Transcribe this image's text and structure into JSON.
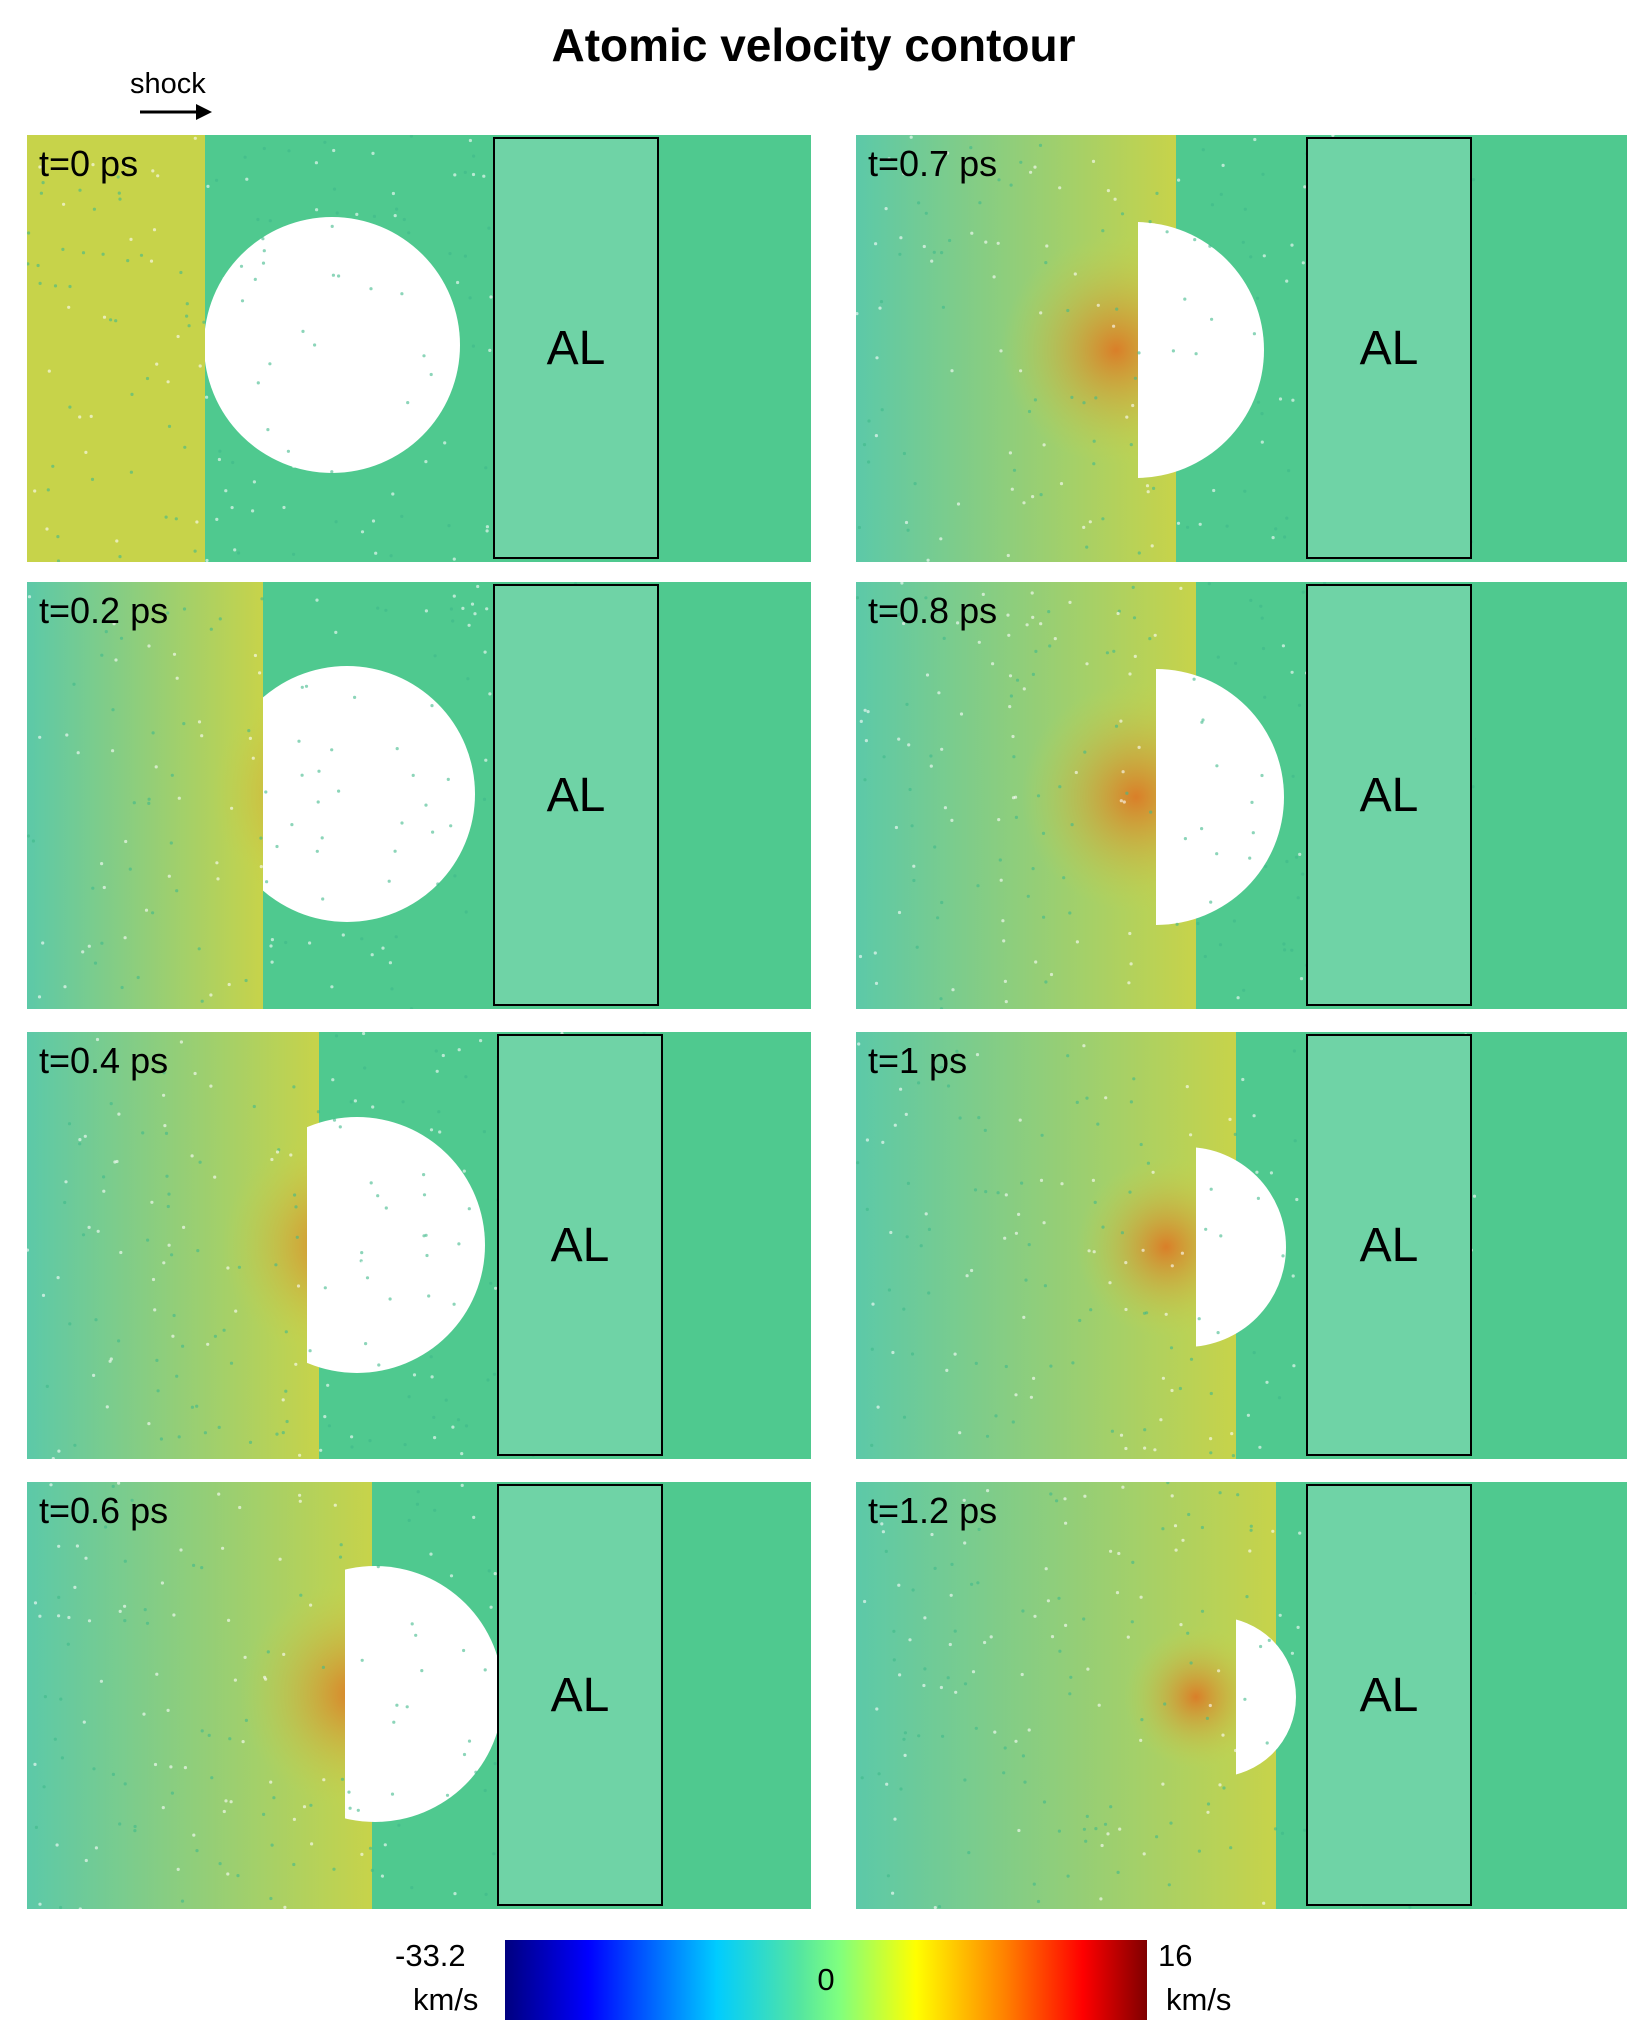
{
  "title": "Atomic velocity contour",
  "shock_label": "shock",
  "colors": {
    "matrix": "#4fc98f",
    "shocked": "#c7d34a",
    "hot": "#e07020",
    "void": "#ffffff",
    "al_block": "#6fd3a6"
  },
  "panels": [
    {
      "time": "t=0 ps",
      "label": "AL",
      "shock_front": 0.0
    },
    {
      "time": "t=0.2 ps",
      "label": "AL",
      "shock_front": 0.2
    },
    {
      "time": "t=0.4 ps",
      "label": "AL",
      "shock_front": 0.4
    },
    {
      "time": "t=0.6 ps",
      "label": "AL",
      "shock_front": 0.6
    },
    {
      "time": "t=0.7 ps",
      "label": "AL",
      "shock_front": 0.7
    },
    {
      "time": "t=0.8 ps",
      "label": "AL",
      "shock_front": 0.8
    },
    {
      "time": "t=1 ps",
      "label": "AL",
      "shock_front": 1.0
    },
    {
      "time": "t=1.2 ps",
      "label": "AL",
      "shock_front": 1.2
    }
  ],
  "colorbar": {
    "min_value": "-33.2",
    "min_unit": "km/s",
    "max_value": "16",
    "max_unit": "km/s",
    "mid_label": "0"
  }
}
